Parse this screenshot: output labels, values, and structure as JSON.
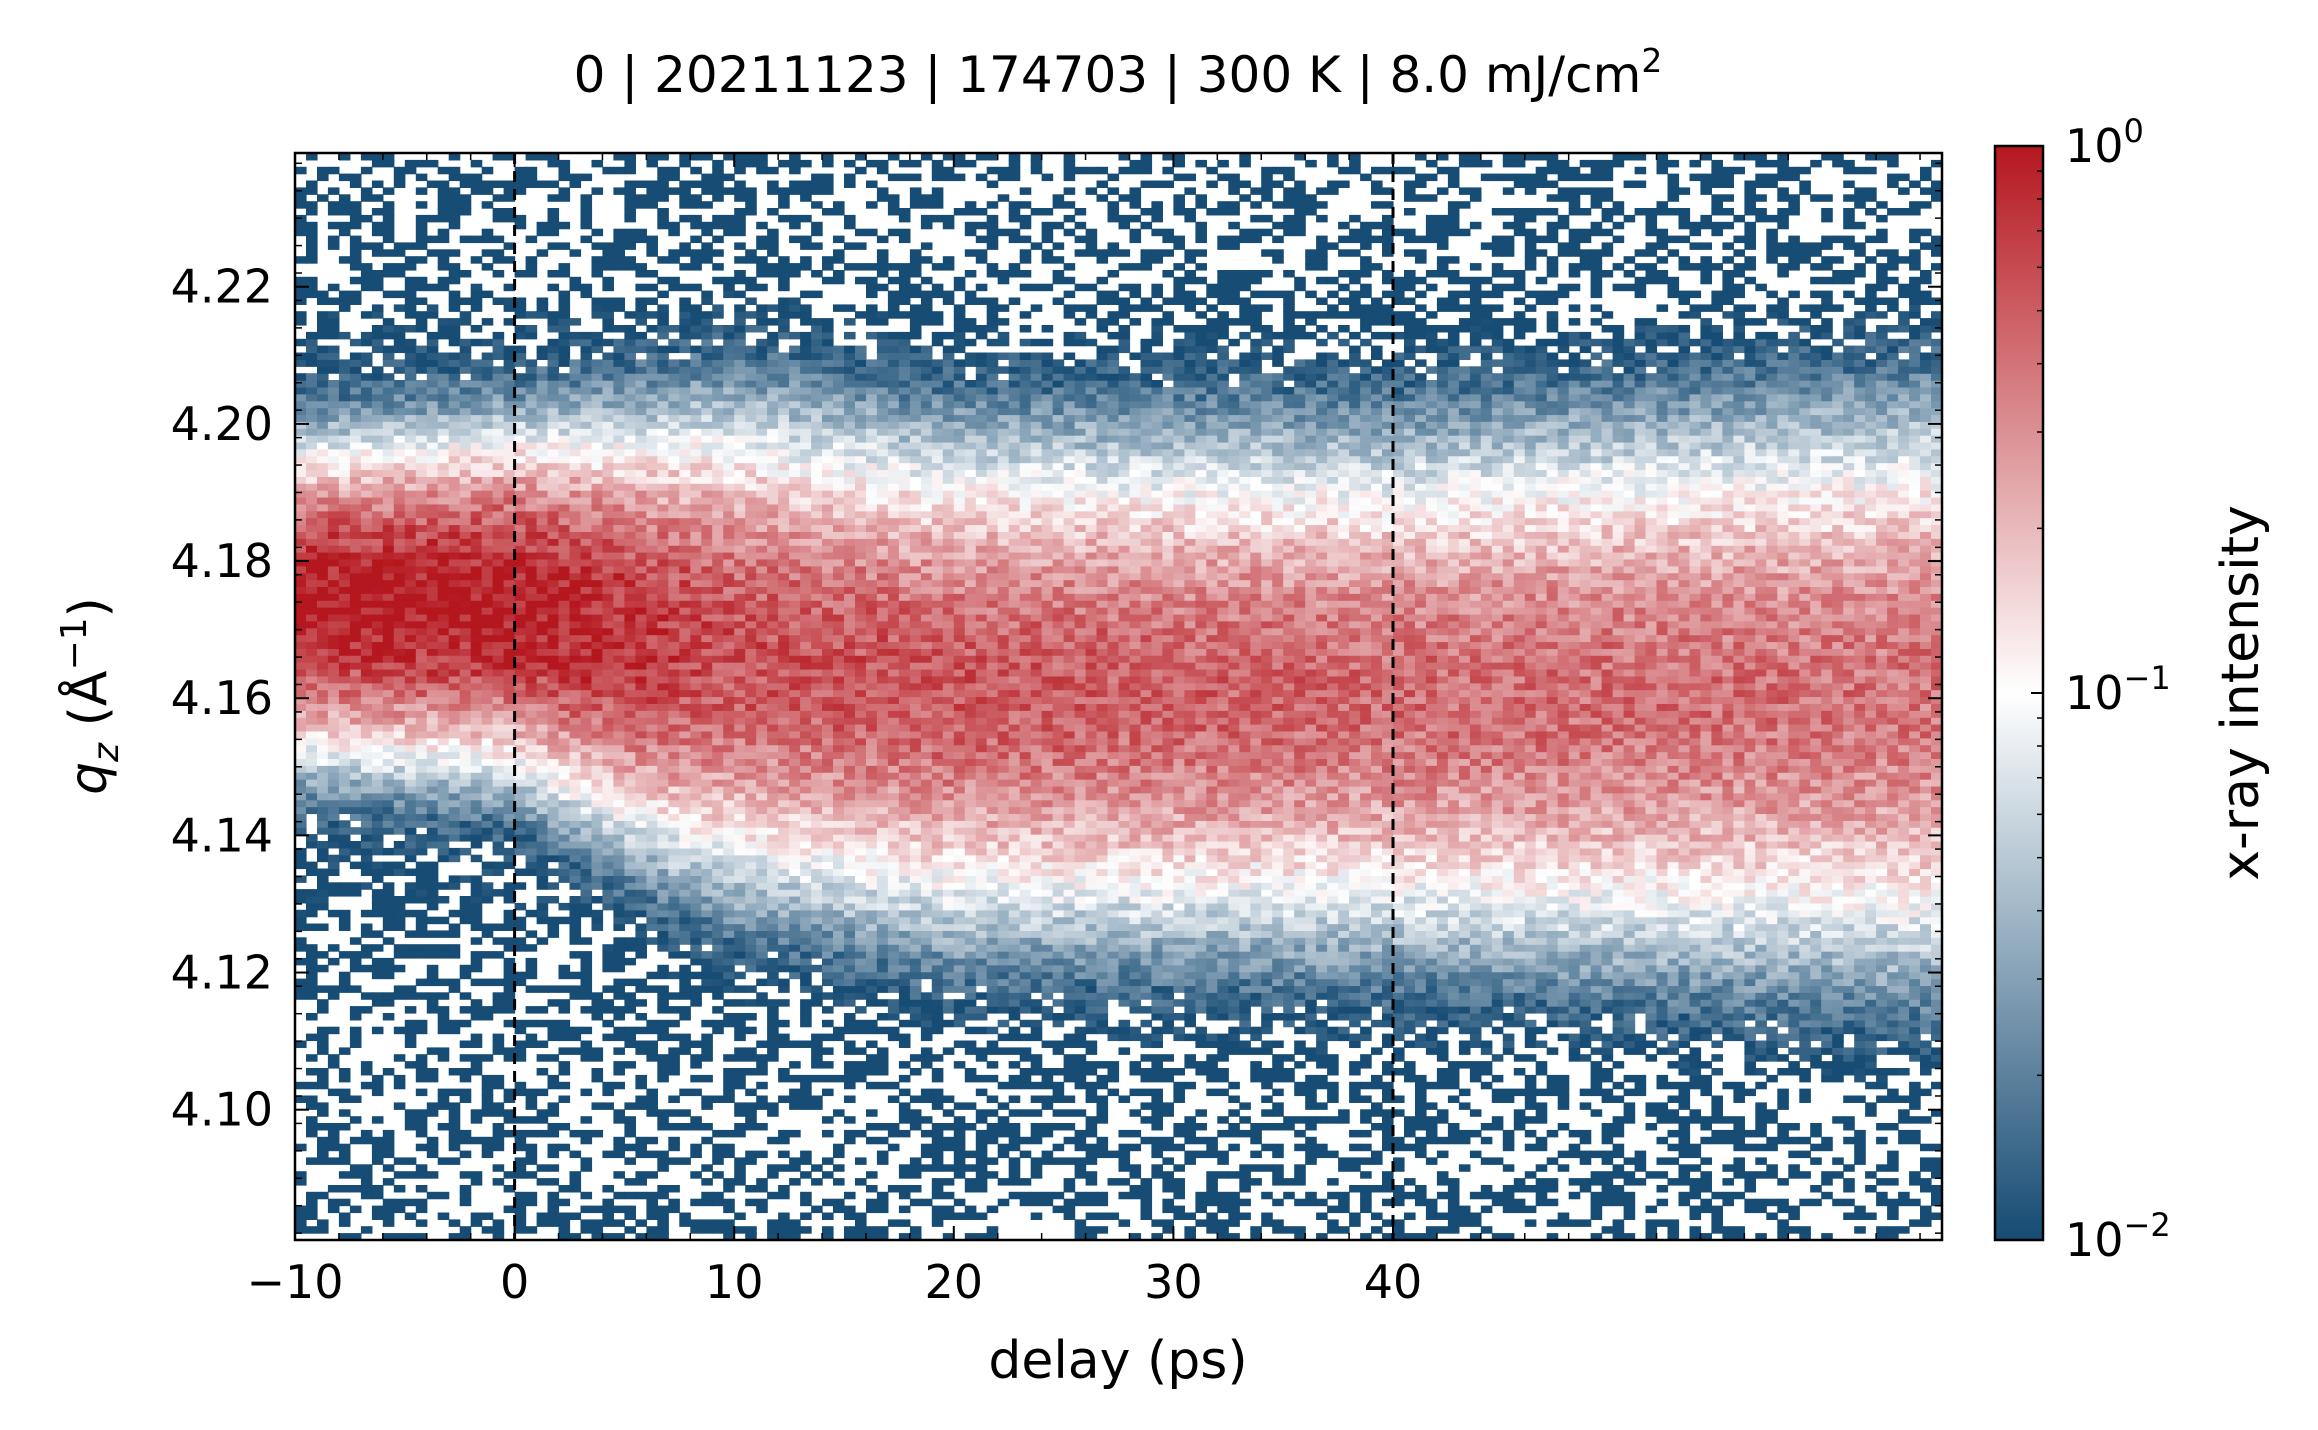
{
  "chart_data": {
    "type": "heatmap",
    "title_parts": {
      "prefix": "0 | 20211123 | 174703 | 300 K | 8.0 mJ/cm",
      "superscript": "2"
    },
    "xlabel": "delay (ps)",
    "ylabel": {
      "symbol": "q",
      "subscript": "z",
      "unit_prefix": " (Å",
      "unit_superscript": "−1",
      "unit_suffix": ")"
    },
    "xlim": [
      -10,
      65
    ],
    "ylim": [
      4.081,
      4.2395
    ],
    "x_ticks": [
      -10,
      0,
      10,
      20,
      30,
      40
    ],
    "x_tick_labels": [
      "−10",
      "0",
      "10",
      "20",
      "30",
      "40"
    ],
    "y_ticks": [
      4.1,
      4.12,
      4.14,
      4.16,
      4.18,
      4.2,
      4.22
    ],
    "y_tick_labels": [
      "4.10",
      "4.12",
      "4.14",
      "4.16",
      "4.18",
      "4.20",
      "4.22"
    ],
    "vertical_lines": [
      0,
      40
    ],
    "colorbar": {
      "label": "x-ray intensity",
      "scale": "log",
      "range": [
        0.01,
        1
      ],
      "tick_labels": [
        {
          "base": "10",
          "exp": "0"
        },
        {
          "base": "10",
          "exp": "−1"
        },
        {
          "base": "10",
          "exp": "−2"
        }
      ],
      "colors": [
        "#164b73",
        "#ffffff",
        "#b5171f"
      ]
    },
    "peak_model": {
      "peak_position_by_delay": [
        {
          "delay": -10,
          "qz": 4.174
        },
        {
          "delay": 0,
          "qz": 4.174
        },
        {
          "delay": 5,
          "qz": 4.17
        },
        {
          "delay": 20,
          "qz": 4.162
        },
        {
          "delay": 40,
          "qz": 4.161
        },
        {
          "delay": 65,
          "qz": 4.161
        }
      ],
      "peak_width_by_delay": [
        {
          "delay": -10,
          "sigma": 0.0095
        },
        {
          "delay": 0,
          "sigma": 0.0105
        },
        {
          "delay": 10,
          "sigma": 0.015
        },
        {
          "delay": 40,
          "sigma": 0.016
        },
        {
          "delay": 65,
          "sigma": 0.018
        }
      ],
      "peak_intensity_by_delay": [
        {
          "delay": -10,
          "intensity": 1.0
        },
        {
          "delay": 0,
          "intensity": 0.95
        },
        {
          "delay": 10,
          "intensity": 0.55
        },
        {
          "delay": 40,
          "intensity": 0.42
        },
        {
          "delay": 65,
          "intensity": 0.38
        }
      ]
    }
  }
}
